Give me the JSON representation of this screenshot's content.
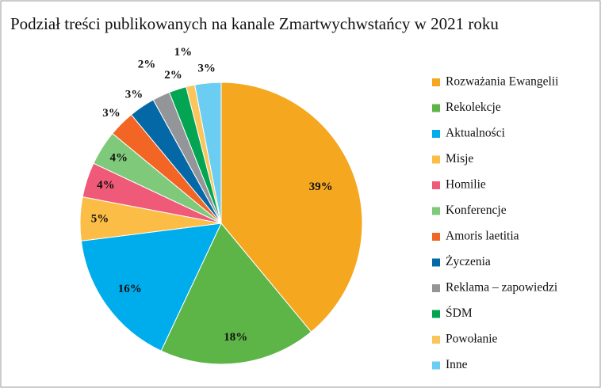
{
  "chart_data": {
    "type": "pie",
    "title": "Podział treści publikowanych na kanale Zmartwychwstańcy w 2021 roku",
    "categories": [
      "Rozważania Ewangelii",
      "Rekolekcje",
      "Aktualności",
      "Misje",
      "Homilie",
      "Konferencje",
      "Amoris laetitia",
      "Życzenia",
      "Reklama – zapowiedzi",
      "ŚDM",
      "Powołanie",
      "Inne"
    ],
    "values": [
      39,
      18,
      16,
      5,
      4,
      4,
      3,
      3,
      2,
      2,
      1,
      3
    ],
    "value_labels": [
      "39%",
      "18%",
      "16%",
      "5%",
      "4%",
      "4%",
      "3%",
      "3%",
      "2%",
      "2%",
      "1%",
      "3%"
    ],
    "colors": [
      "#f5a71f",
      "#5db548",
      "#00adec",
      "#fbbd45",
      "#ee5a78",
      "#7fc97b",
      "#f26524",
      "#0568a6",
      "#949598",
      "#03a552",
      "#fbc55c",
      "#6ccdf3"
    ],
    "legend": "right"
  }
}
